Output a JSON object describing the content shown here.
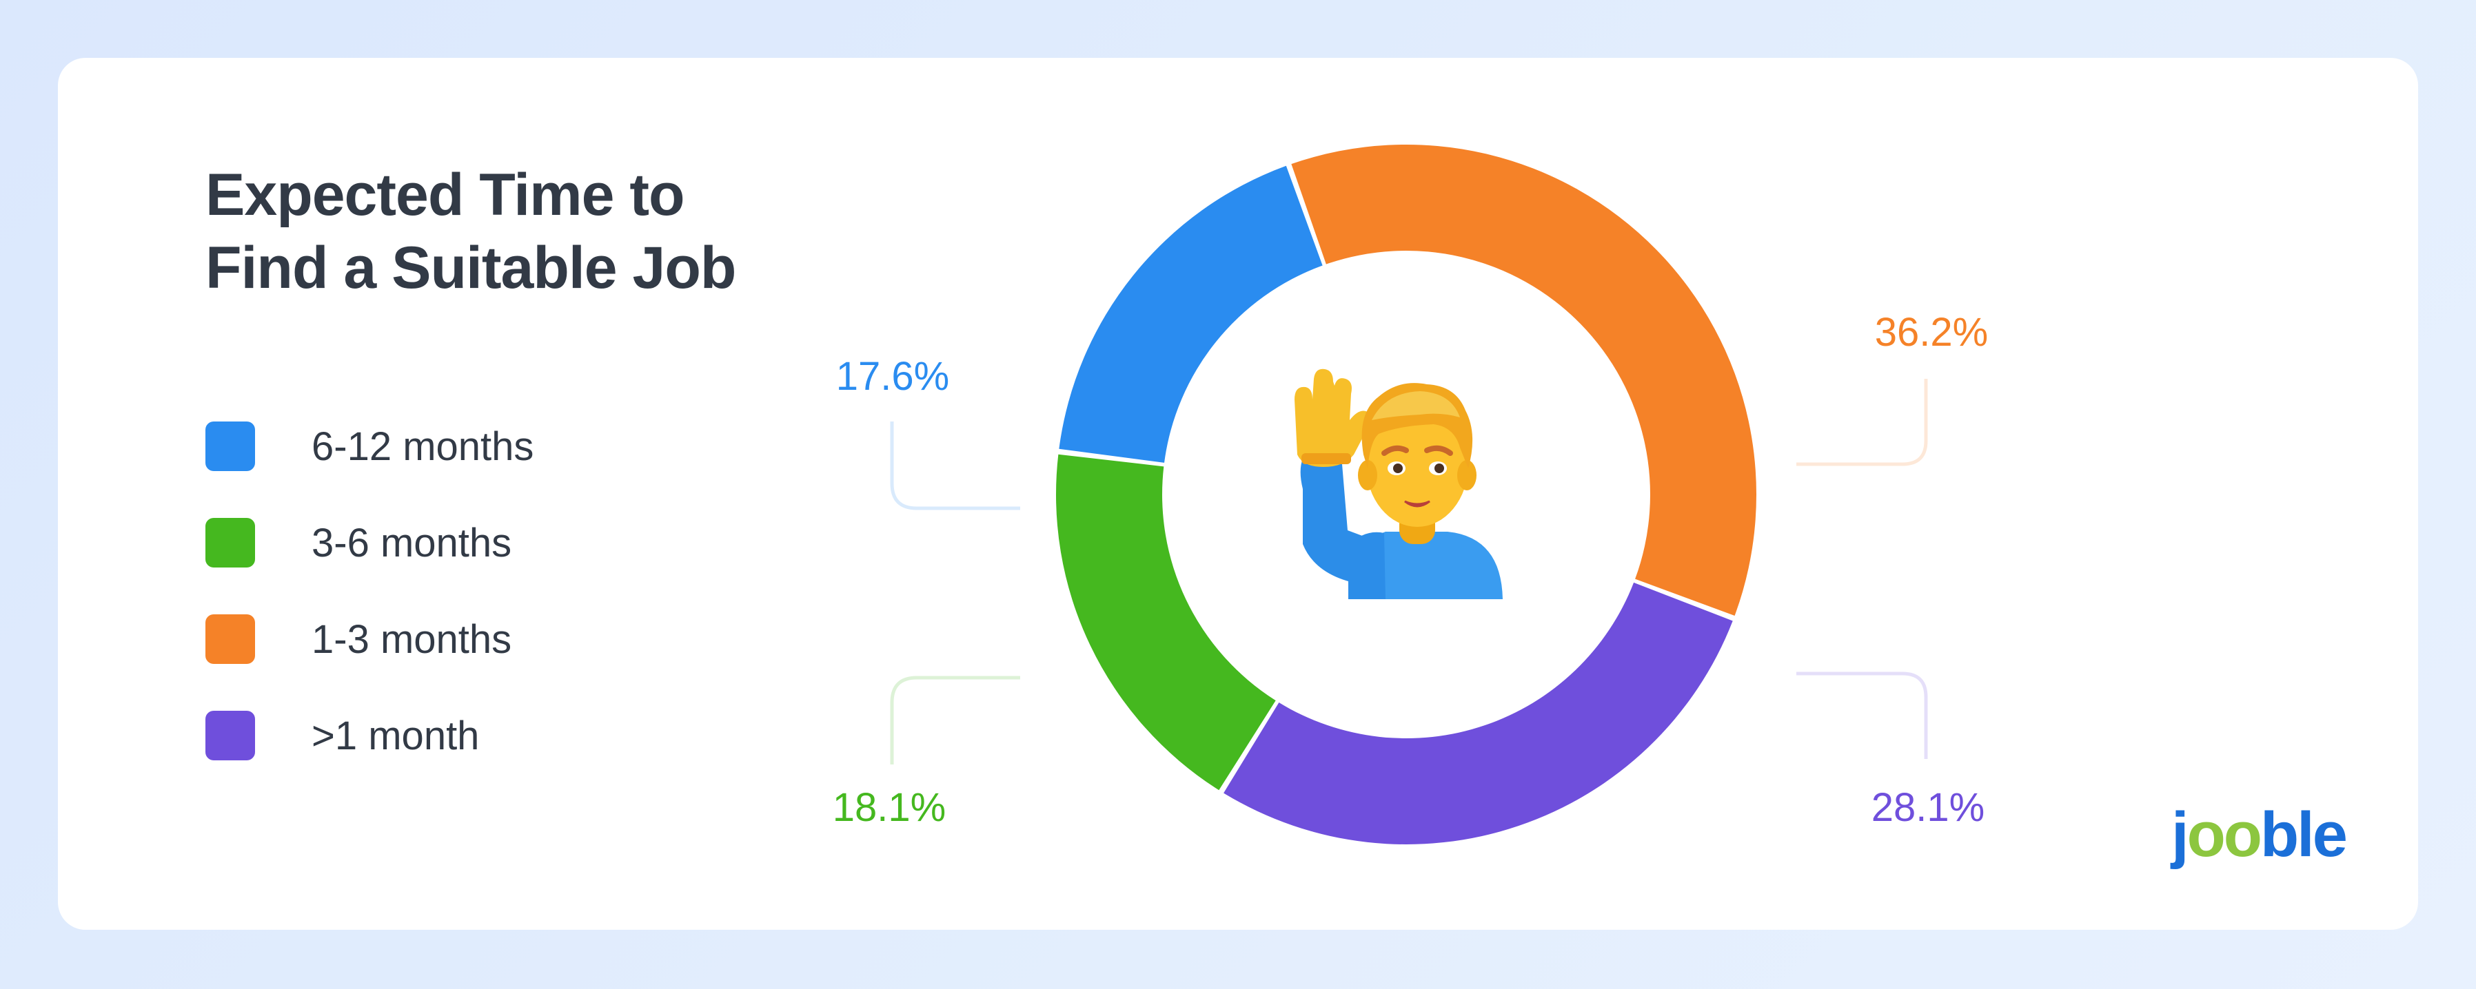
{
  "colors": {
    "blue": "#2a8cf0",
    "green": "#45b81f",
    "orange": "#f58228",
    "purple": "#6f4fdc",
    "text": "#323a46"
  },
  "brand": {
    "logo_text": "jooble",
    "logo_colors": [
      "#1b6fd8",
      "#8cc63f",
      "#1b6fd8"
    ]
  },
  "center_icon": "person-raising-hand-emoji",
  "chart_data": {
    "type": "pie",
    "donut": true,
    "title_lines": [
      "Expected Time to",
      "Find a Suitable Job"
    ],
    "slices": [
      {
        "label": "6-12 months",
        "value": 17.6,
        "value_label": "17.6%",
        "color": "#2a8cf0"
      },
      {
        "label": "3-6 months",
        "value": 18.1,
        "value_label": "18.1%",
        "color": "#45b81f"
      },
      {
        "label": "1-3 months",
        "value": 36.2,
        "value_label": "36.2%",
        "color": "#f58228"
      },
      {
        "label": ">1 month",
        "value": 28.1,
        "value_label": "28.1%",
        "color": "#6f4fdc"
      }
    ],
    "legend": [
      "6-12 months",
      "3-6 months",
      "1-3 months",
      ">1 month"
    ],
    "legend_position": "left"
  }
}
